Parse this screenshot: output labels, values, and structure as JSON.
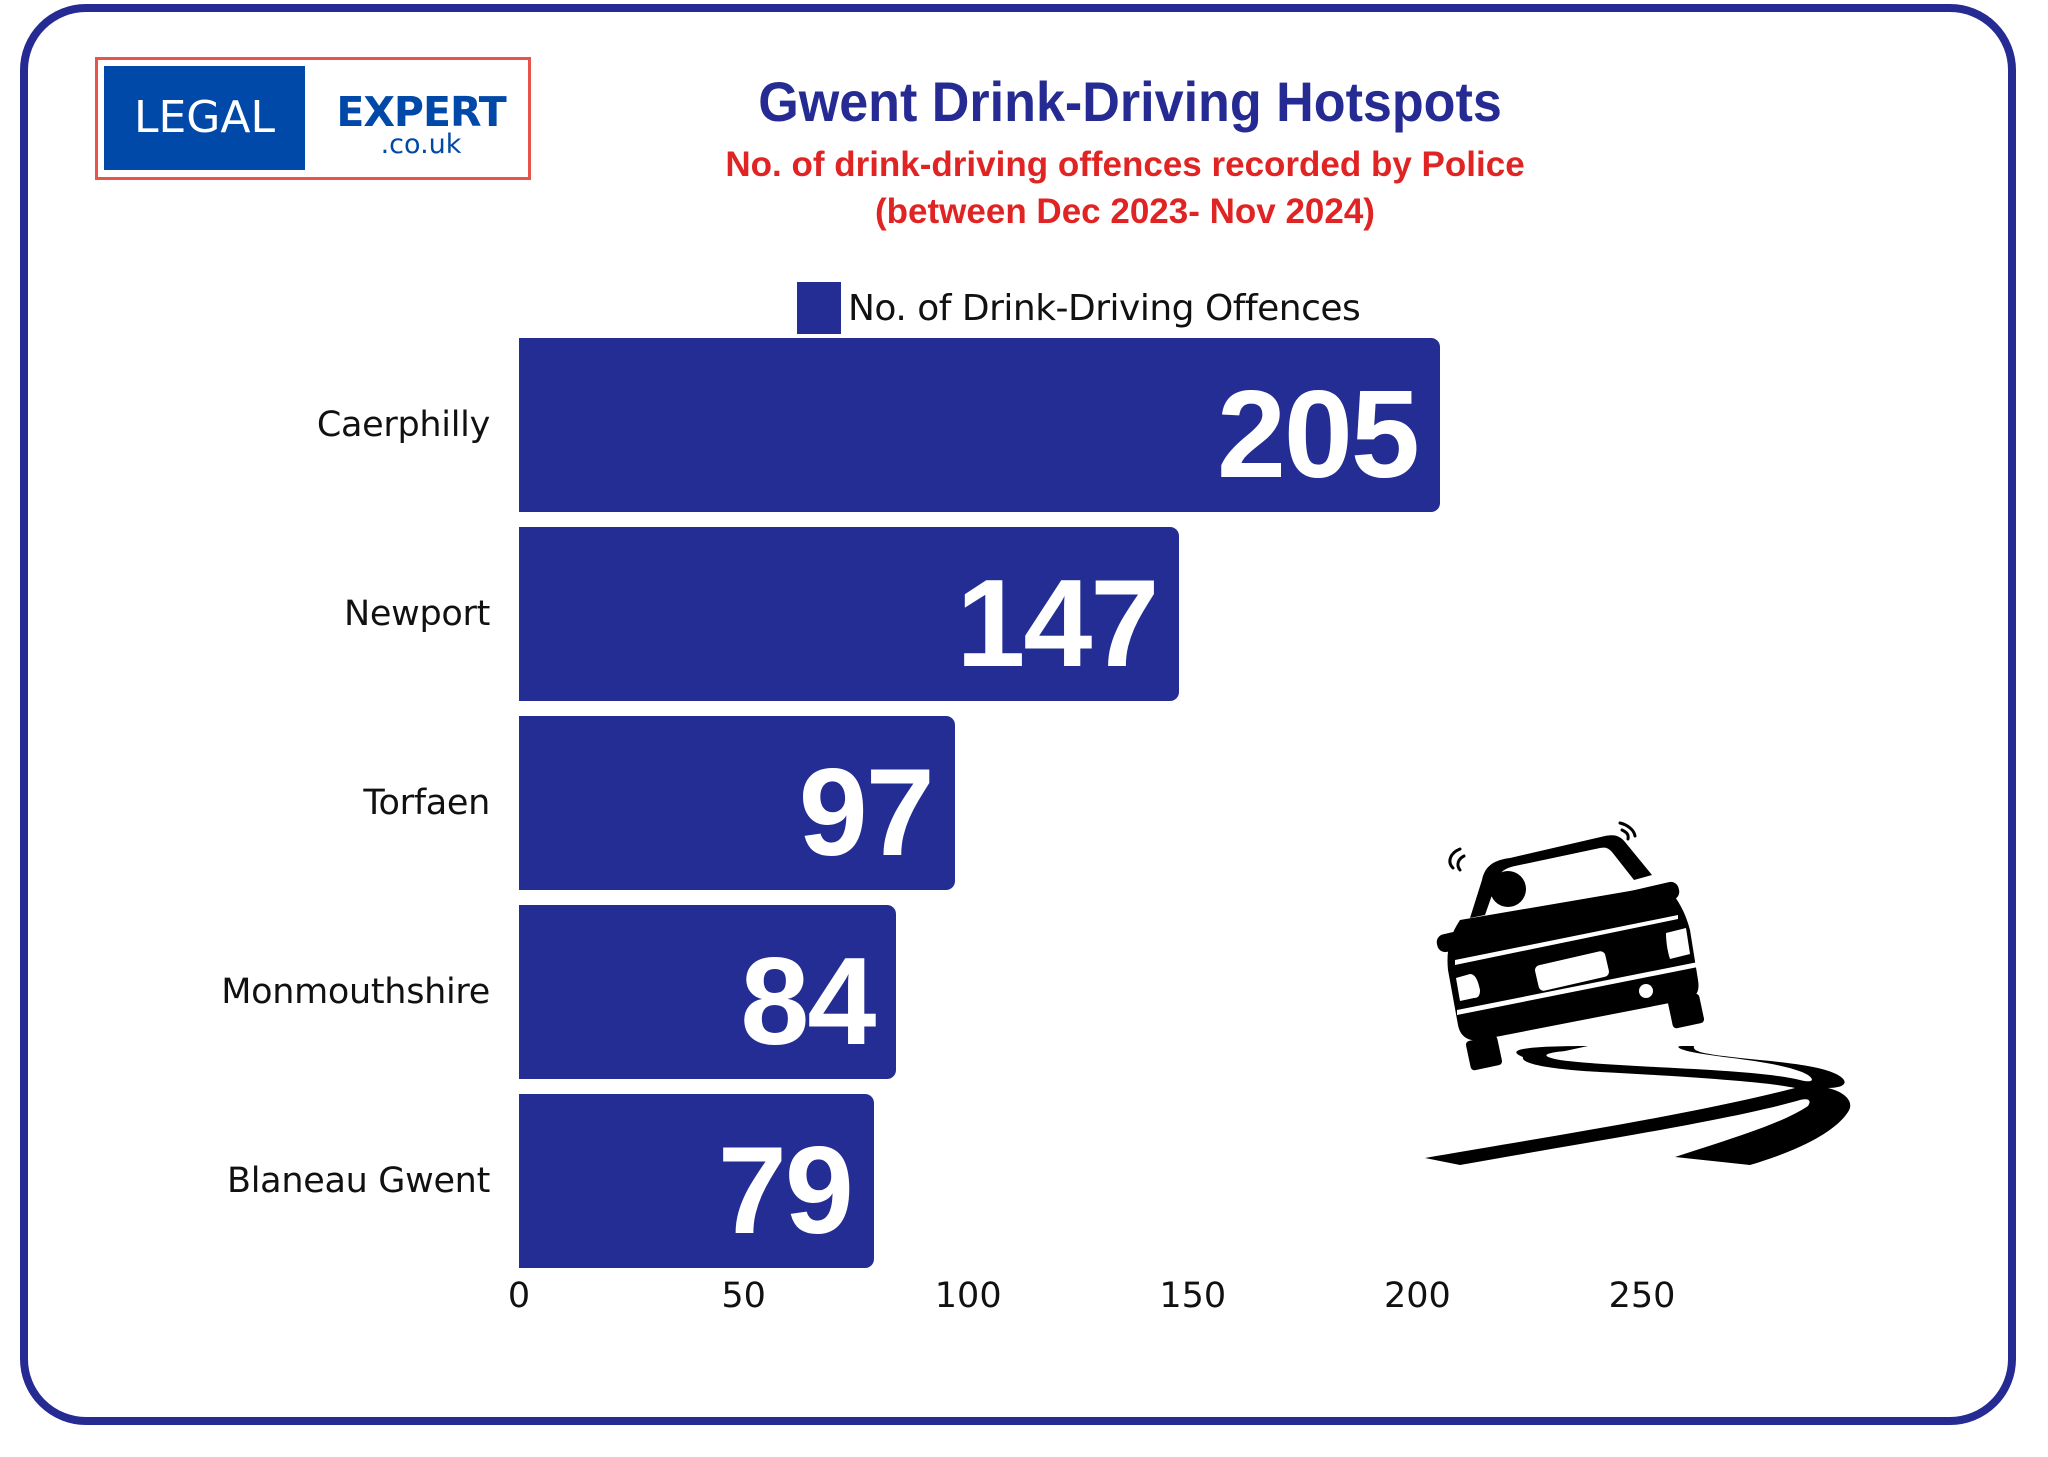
{
  "logo": {
    "left_text": "LEGAL",
    "right_text": "EXPERT",
    "domain_text": ".co.uk",
    "colors": {
      "blue": "#0049A8",
      "border": "#E8534C"
    }
  },
  "header": {
    "title": "Gwent Drink-Driving Hotspots",
    "subtitle_line1": "No. of drink-driving offences recorded by Police",
    "subtitle_line2": "(between Dec 2023- Nov 2024)"
  },
  "icons": {
    "illustration": "car-skidding-icon"
  },
  "colors": {
    "bar": "#232D93",
    "title": "#252B93",
    "subtitle": "#E02424",
    "frame": "#252B93"
  },
  "chart_data": {
    "type": "bar",
    "orientation": "horizontal",
    "title": "Gwent Drink-Driving Hotspots",
    "subtitle": "No. of drink-driving offences recorded by Police (between Dec 2023- Nov 2024)",
    "categories": [
      "Caerphilly",
      "Newport",
      "Torfaen",
      "Monmouthshire",
      "Blaneau Gwent"
    ],
    "series": [
      {
        "name": "No. of Drink-Driving Offences",
        "values": [
          205,
          147,
          97,
          84,
          79
        ],
        "color": "#232D93"
      }
    ],
    "data_labels": [
      "205",
      "147",
      "97",
      "84",
      "79"
    ],
    "xlabel": "",
    "ylabel": "",
    "xlim": [
      0,
      250
    ],
    "x_ticks": [
      0,
      50,
      100,
      150,
      200,
      250
    ],
    "x_tick_labels": [
      "0",
      "50",
      "100",
      "150",
      "200",
      "250"
    ],
    "grid": false,
    "legend": "top-center"
  }
}
